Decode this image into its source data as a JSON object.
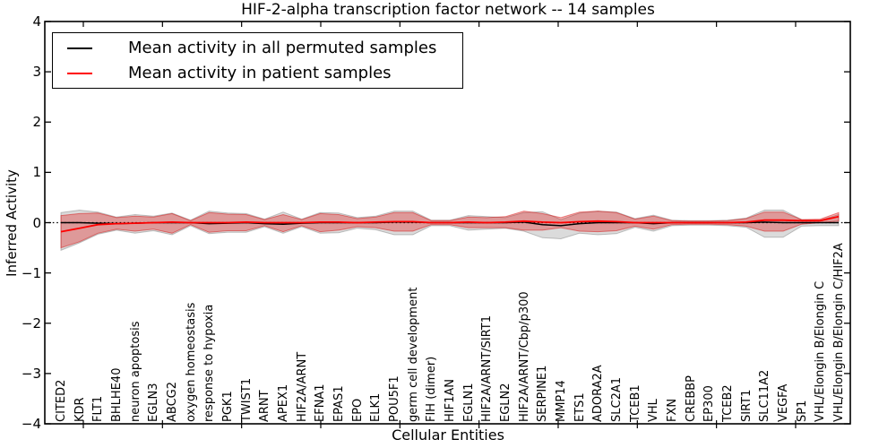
{
  "chart_data": {
    "type": "line",
    "title": "HIF-2-alpha transcription factor network -- 14 samples",
    "xlabel": "Cellular Entities",
    "ylabel": "Inferred Activity",
    "ylim": [
      -4,
      4
    ],
    "yticks": [
      4,
      3,
      2,
      1,
      0,
      -1,
      -2,
      -3,
      -4
    ],
    "ytick_labels": [
      "4",
      "3",
      "2",
      "1",
      "0",
      "−1",
      "−2",
      "−3",
      "−4"
    ],
    "grid": false,
    "zero_line": true,
    "legend_position": "upper left",
    "categories": [
      "CITED2",
      "KDR",
      "FLT1",
      "BHLHE40",
      "neuron apoptosis",
      "EGLN3",
      "ABCG2",
      "oxygen homeostasis",
      "response to hypoxia",
      "PGK1",
      "TWIST1",
      "ARNT",
      "APEX1",
      "HIF2A/ARNT",
      "EFNA1",
      "EPAS1",
      "EPO",
      "ELK1",
      "POU5F1",
      "germ cell development",
      "FIH (dimer)",
      "HIF1AN",
      "EGLN1",
      "HIF2A/ARNT/SIRT1",
      "EGLN2",
      "HIF2A/ARNT/Cbp/p300",
      "SERPINE1",
      "MMP14",
      "ETS1",
      "ADORA2A",
      "SLC2A1",
      "TCEB1",
      "VHL",
      "FXN",
      "CREBBP",
      "EP300",
      "TCEB2",
      "SIRT1",
      "SLC11A2",
      "VEGFA",
      "SP1",
      "VHL/Elongin B/Elongin C",
      "VHL/Elongin B/Elongin C/HIF2A"
    ],
    "series": [
      {
        "name": "Mean activity in all permuted samples",
        "color": "#000000",
        "band_fill": "rgba(0,0,0,0.14)",
        "band_edge": "rgba(0,0,0,0.22)",
        "values": [
          0.0,
          0.0,
          -0.01,
          -0.02,
          -0.01,
          0.0,
          0.0,
          0.0,
          -0.02,
          -0.01,
          0.0,
          -0.02,
          -0.03,
          -0.01,
          0.0,
          0.0,
          0.0,
          0.0,
          0.01,
          0.01,
          0.0,
          0.0,
          0.0,
          0.0,
          0.0,
          0.01,
          -0.04,
          -0.06,
          -0.02,
          0.0,
          0.0,
          0.0,
          -0.02,
          0.0,
          0.0,
          0.0,
          0.0,
          0.0,
          0.01,
          0.0,
          0.0,
          0.0,
          0.0
        ],
        "band_upper": [
          0.2,
          0.25,
          0.21,
          0.11,
          0.16,
          0.13,
          0.19,
          0.05,
          0.23,
          0.19,
          0.18,
          0.07,
          0.21,
          0.07,
          0.2,
          0.19,
          0.1,
          0.13,
          0.23,
          0.23,
          0.05,
          0.05,
          0.14,
          0.12,
          0.1,
          0.2,
          0.22,
          0.06,
          0.19,
          0.23,
          0.21,
          0.08,
          0.15,
          0.05,
          0.04,
          0.04,
          0.05,
          0.09,
          0.25,
          0.25,
          0.06,
          0.05,
          0.16
        ],
        "band_lower": [
          -0.55,
          -0.4,
          -0.23,
          -0.15,
          -0.21,
          -0.16,
          -0.24,
          -0.06,
          -0.22,
          -0.19,
          -0.19,
          -0.08,
          -0.21,
          -0.08,
          -0.21,
          -0.2,
          -0.11,
          -0.14,
          -0.24,
          -0.24,
          -0.06,
          -0.06,
          -0.15,
          -0.13,
          -0.11,
          -0.17,
          -0.3,
          -0.32,
          -0.21,
          -0.24,
          -0.22,
          -0.09,
          -0.17,
          -0.06,
          -0.05,
          -0.05,
          -0.06,
          -0.09,
          -0.29,
          -0.29,
          -0.07,
          -0.06,
          -0.06
        ]
      },
      {
        "name": "Mean activity in patient samples",
        "color": "#ff0000",
        "band_fill": "rgba(230,0,0,0.30)",
        "band_edge": "rgba(210,0,0,0.45)",
        "values": [
          -0.18,
          -0.11,
          -0.04,
          -0.02,
          -0.01,
          0.0,
          0.01,
          0.0,
          0.0,
          0.0,
          0.01,
          0.0,
          0.0,
          0.0,
          0.01,
          0.01,
          0.0,
          0.01,
          0.02,
          0.02,
          0.0,
          0.0,
          0.01,
          0.0,
          0.01,
          0.03,
          0.01,
          0.0,
          0.02,
          0.03,
          0.02,
          0.0,
          0.0,
          0.0,
          0.0,
          0.0,
          0.0,
          0.01,
          0.05,
          0.05,
          0.04,
          0.04,
          0.12
        ],
        "band_upper": [
          0.14,
          0.18,
          0.19,
          0.1,
          0.13,
          0.11,
          0.18,
          0.04,
          0.2,
          0.17,
          0.16,
          0.06,
          0.16,
          0.06,
          0.18,
          0.16,
          0.08,
          0.11,
          0.2,
          0.2,
          0.04,
          0.04,
          0.11,
          0.1,
          0.12,
          0.23,
          0.18,
          0.1,
          0.21,
          0.23,
          0.2,
          0.07,
          0.13,
          0.04,
          0.03,
          0.03,
          0.04,
          0.08,
          0.21,
          0.21,
          0.06,
          0.07,
          0.2
        ],
        "band_lower": [
          -0.5,
          -0.38,
          -0.21,
          -0.13,
          -0.17,
          -0.13,
          -0.21,
          -0.04,
          -0.19,
          -0.16,
          -0.16,
          -0.06,
          -0.18,
          -0.06,
          -0.18,
          -0.15,
          -0.08,
          -0.1,
          -0.17,
          -0.17,
          -0.04,
          -0.04,
          -0.1,
          -0.1,
          -0.1,
          -0.15,
          -0.15,
          -0.1,
          -0.17,
          -0.18,
          -0.16,
          -0.07,
          -0.13,
          -0.04,
          -0.03,
          -0.03,
          -0.04,
          -0.07,
          -0.17,
          -0.17,
          -0.03,
          0.0,
          0.03
        ]
      }
    ]
  }
}
